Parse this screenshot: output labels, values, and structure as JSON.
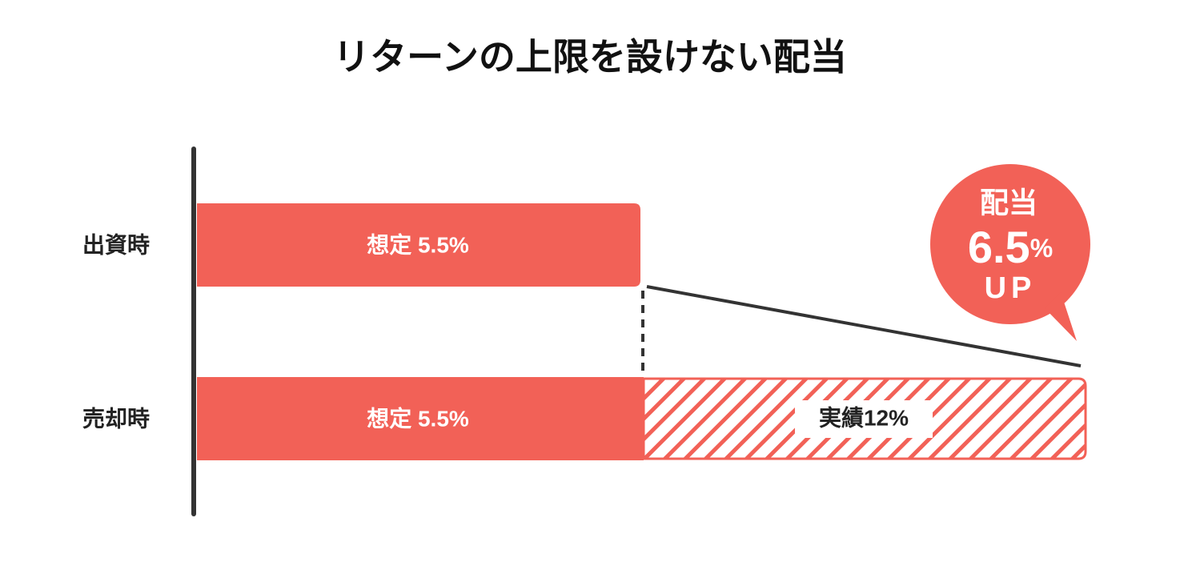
{
  "title": "リターンの上限を設けない配当",
  "rows": [
    {
      "label": "出資時",
      "bar_label": "想定 5.5%"
    },
    {
      "label": "売却時",
      "bar_label": "想定 5.5%",
      "extra_label": "実績12%"
    }
  ],
  "badge": {
    "title": "配当",
    "value": "6.5",
    "unit": "%",
    "caption": "UP"
  }
}
